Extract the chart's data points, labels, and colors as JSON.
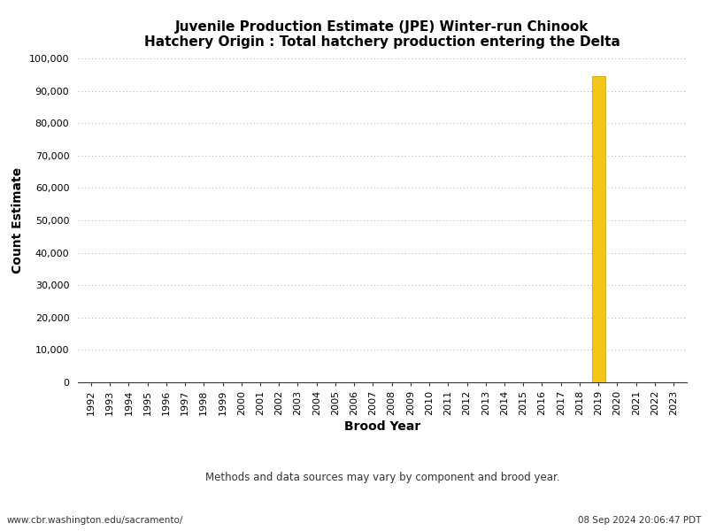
{
  "title_line1": "Juvenile Production Estimate (JPE) Winter-run Chinook",
  "title_line2": "Hatchery Origin : Total hatchery production entering the Delta",
  "xlabel": "Brood Year",
  "ylabel": "Count Estimate",
  "footnote": "Methods and data sources may vary by component and brood year.",
  "footer_left": "www.cbr.washington.edu/sacramento/",
  "footer_right": "08 Sep 2024 20:06:47 PDT",
  "years": [
    1992,
    1993,
    1994,
    1995,
    1996,
    1997,
    1998,
    1999,
    2000,
    2001,
    2002,
    2003,
    2004,
    2005,
    2006,
    2007,
    2008,
    2009,
    2010,
    2011,
    2012,
    2013,
    2014,
    2015,
    2016,
    2017,
    2018,
    2019,
    2020,
    2021,
    2022,
    2023
  ],
  "values": [
    0,
    0,
    0,
    0,
    0,
    0,
    0,
    0,
    0,
    0,
    0,
    0,
    0,
    0,
    0,
    0,
    0,
    0,
    0,
    0,
    0,
    0,
    0,
    0,
    0,
    0,
    0,
    94500,
    0,
    0,
    0,
    0
  ],
  "bar_color": "#F5C518",
  "bar_edge_color": "#C89A00",
  "ylim": [
    0,
    100000
  ],
  "ytick_step": 10000,
  "background_color": "#ffffff",
  "plot_bg_color": "#ffffff",
  "grid_color": "#aaaaaa",
  "title_fontsize": 11,
  "axis_label_fontsize": 10,
  "tick_fontsize": 8,
  "footnote_fontsize": 8.5,
  "footer_fontsize": 7.5
}
